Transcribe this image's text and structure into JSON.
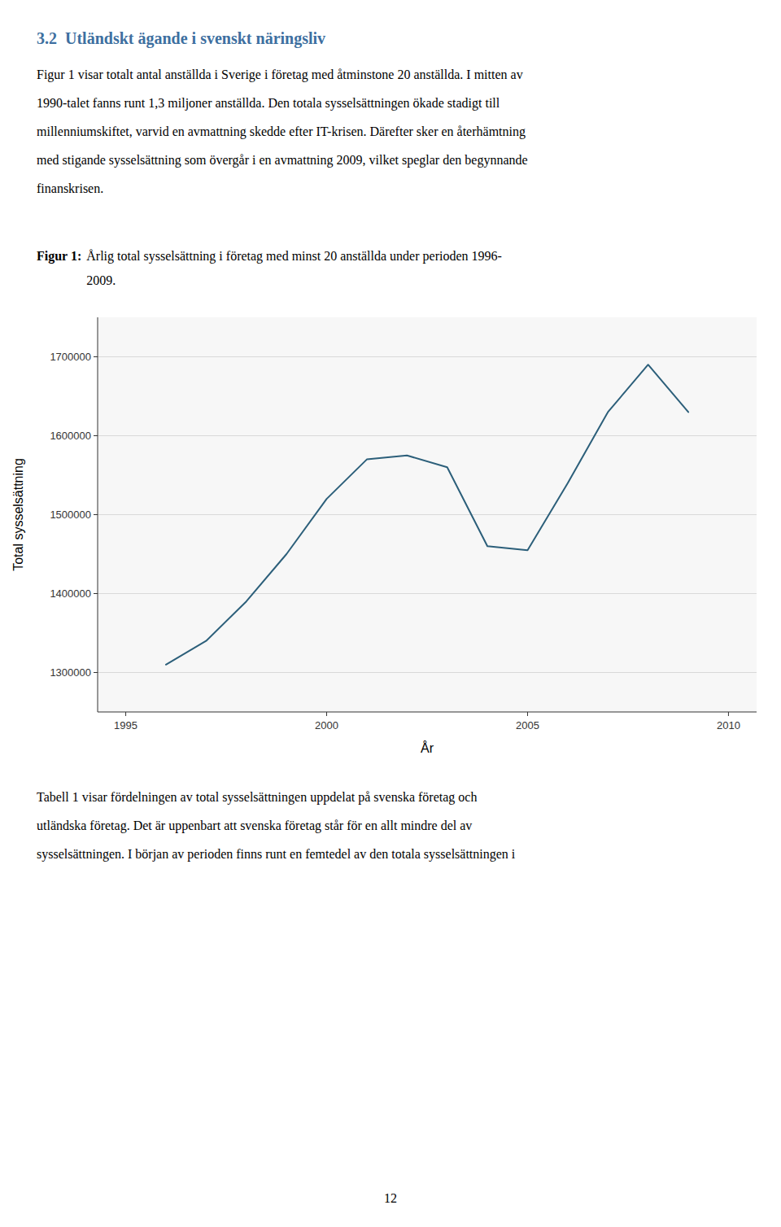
{
  "heading": "3.2  Utländskt ägande i svenskt näringsliv",
  "paragraphs": [
    "Figur 1 visar totalt antal anställda i Sverige i företag med åtminstone 20 anställda. I mitten av\n1990-talet fanns runt 1,3 miljoner anställda. Den totala sysselsättningen ökade stadigt till\nmillenniumskiftet, varvid en avmattning skedde efter IT-krisen. Därefter sker en återhämtning\nmed stigande sysselsättning som övergår i en avmattning 2009, vilket speglar den begynnande\nfinanskrisen.",
    "Tabell 1 visar fördelningen av total sysselsättningen uppdelat på svenska företag och\nutländska företag. Det är uppenbart att svenska företag står för en allt mindre del av\nsysselsättningen. I början av perioden finns runt en femtedel av den totala sysselsättningen i"
  ],
  "caption_label": "Figur 1:",
  "caption": "Årlig total sysselsättning i företag med minst 20 anställda under perioden 1996-\n2009.",
  "page_number": "12",
  "chart_data": {
    "type": "line",
    "x": [
      1996,
      1997,
      1998,
      1999,
      2000,
      2001,
      2002,
      2003,
      2004,
      2005,
      2006,
      2007,
      2008,
      2009
    ],
    "values": [
      1310000,
      1340000,
      1390000,
      1450000,
      1520000,
      1570000,
      1575000,
      1560000,
      1460000,
      1455000,
      1540000,
      1630000,
      1690000,
      1630000
    ],
    "color": "#2c5f7a",
    "xlabel": "År",
    "ylabel": "Total sysselsättning",
    "xlim": [
      1994.3,
      2010.7
    ],
    "ylim": [
      1250000,
      1750000
    ],
    "xticks": [
      1995,
      2000,
      2005,
      2010
    ],
    "yticks": [
      1300000,
      1400000,
      1500000,
      1600000,
      1700000
    ],
    "grid": true
  }
}
